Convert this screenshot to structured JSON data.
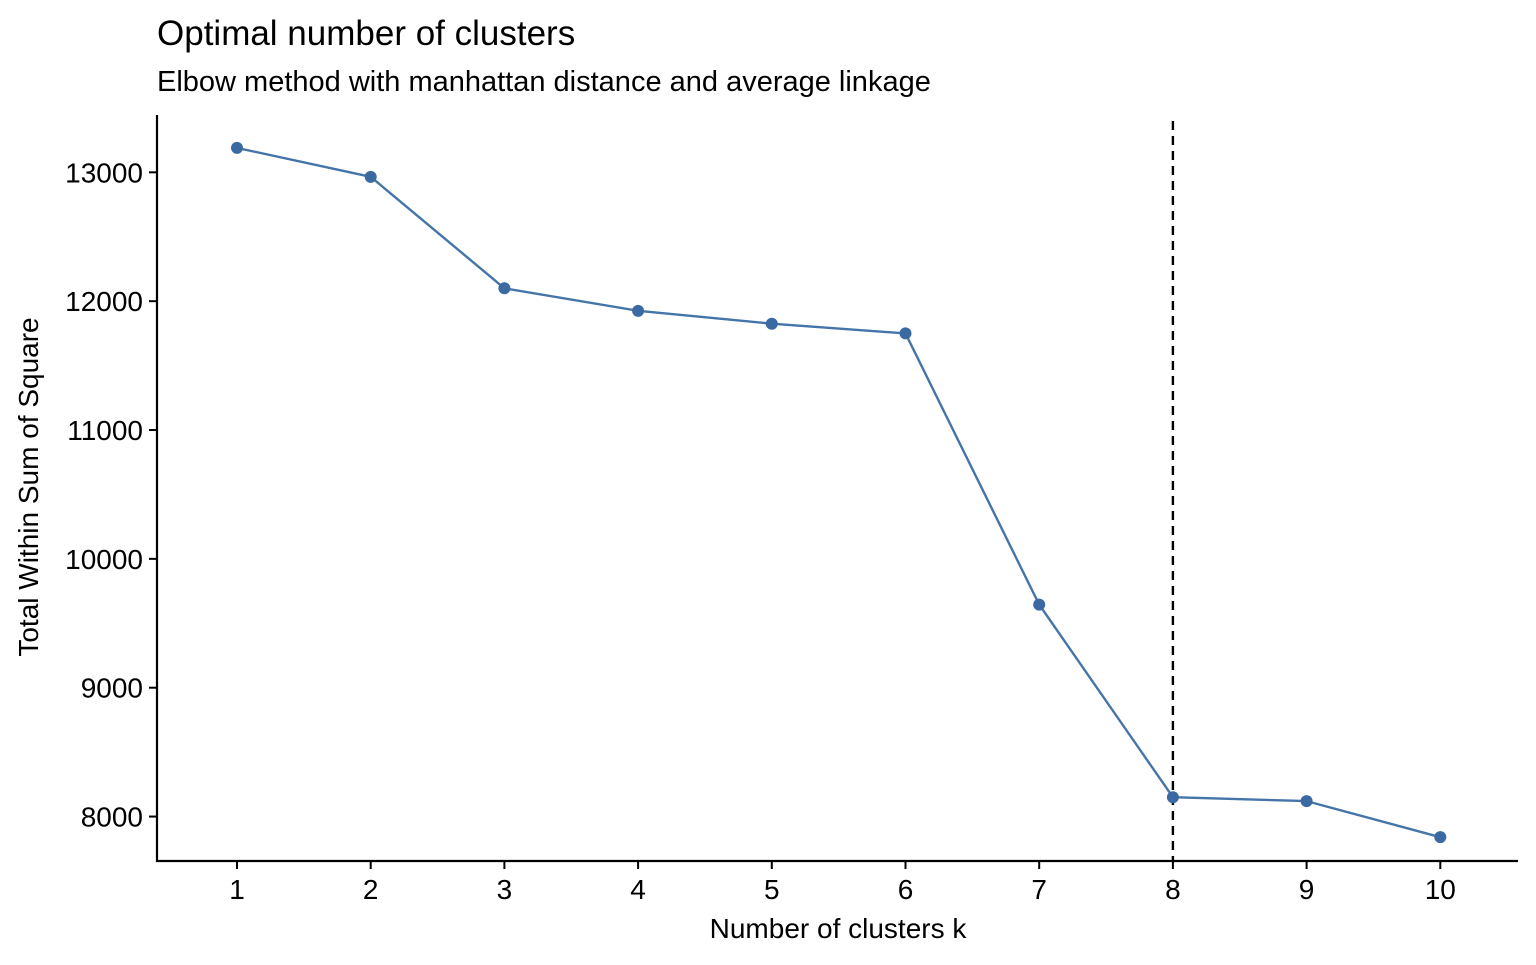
{
  "chart_data": {
    "type": "line",
    "title": "Optimal number of clusters",
    "subtitle": "Elbow method with manhattan distance and average linkage",
    "xlabel": "Number of clusters k",
    "ylabel": "Total Within Sum of Square",
    "categories": [
      "1",
      "2",
      "3",
      "4",
      "5",
      "6",
      "7",
      "8",
      "9",
      "10"
    ],
    "values": [
      13190,
      12965,
      12100,
      11925,
      11825,
      11750,
      9645,
      8150,
      8120,
      7840
    ],
    "yticks": [
      8000,
      9000,
      10000,
      11000,
      12000,
      13000
    ],
    "ytick_labels": [
      "8000",
      "9000",
      "10000",
      "11000",
      "12000",
      "13000"
    ],
    "ylim": [
      7655,
      13445
    ],
    "optimal_k": 8,
    "grid": false,
    "legend": "none",
    "colors": {
      "line": "#4474a8",
      "point": "#3b6aa3",
      "reference_line": "#000000",
      "axis": "#000000"
    }
  }
}
